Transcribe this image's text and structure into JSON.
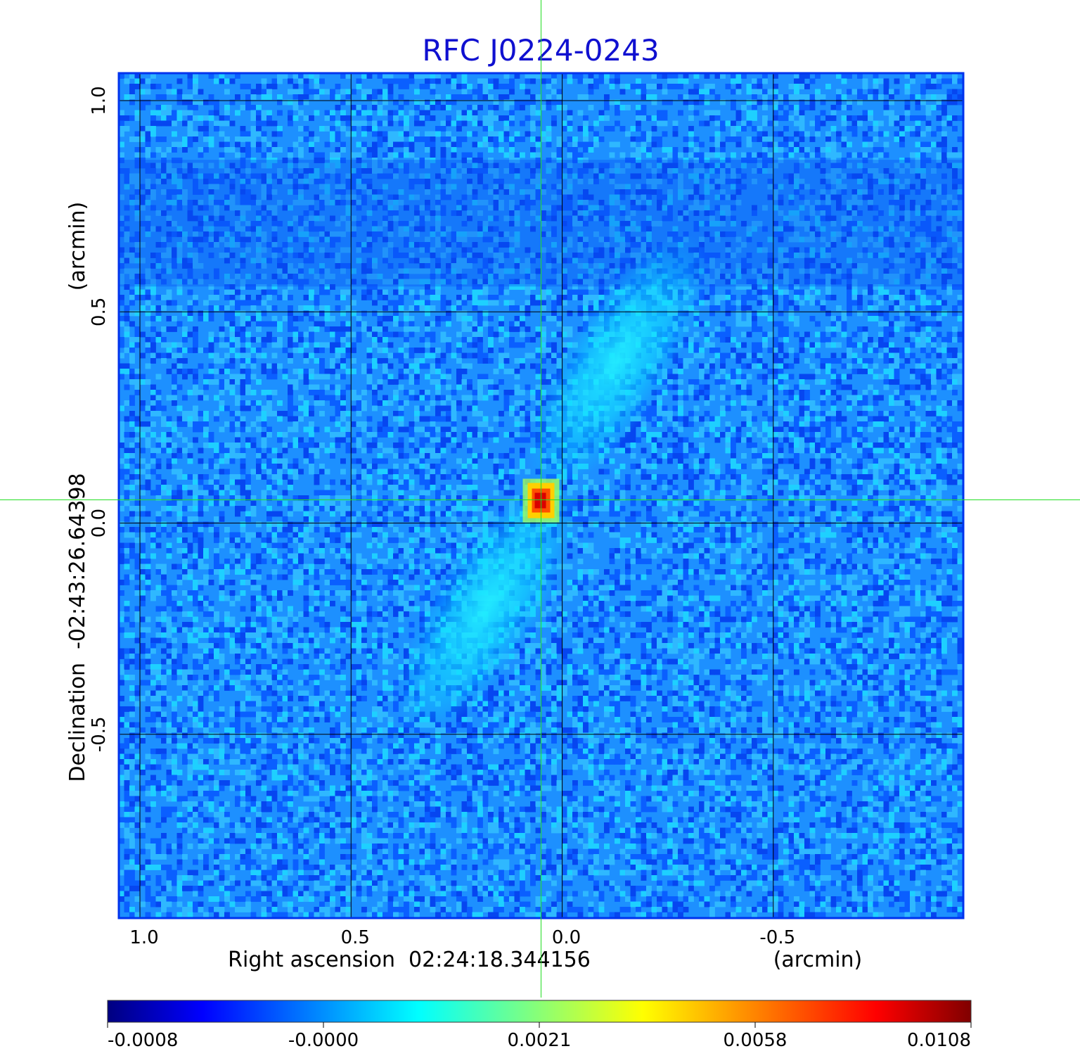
{
  "chart_data": {
    "type": "heatmap",
    "title": "RFC J0224-0243",
    "xlabel": "Right ascension  02:24:18.344156",
    "xunit": "(arcmin)",
    "ylabel": "Declination  -02:43:26.64398",
    "yunit": "(arcmin)",
    "x_ticks": [
      {
        "value": 1.0,
        "label": "1.0"
      },
      {
        "value": 0.5,
        "label": "0.5"
      },
      {
        "value": 0.0,
        "label": "0.0"
      },
      {
        "value": -0.5,
        "label": "-0.5"
      }
    ],
    "y_ticks": [
      {
        "value": 1.0,
        "label": "1.0"
      },
      {
        "value": 0.5,
        "label": "0.5"
      },
      {
        "value": 0.0,
        "label": "0.0"
      },
      {
        "value": -0.5,
        "label": "-0.5"
      }
    ],
    "xlim": [
      1.05,
      -0.95
    ],
    "ylim": [
      -0.935,
      1.065
    ],
    "grid": true,
    "crosshair": {
      "x": 0.05,
      "y": 0.055
    },
    "colormap": "jet",
    "colorbar": {
      "ticks": [
        "-0.0008",
        "-0.0000",
        "0.0021",
        "0.0058",
        "0.0108"
      ],
      "colors": [
        "#000080",
        "#0000ff",
        "#00ffff",
        "#ffff00",
        "#ff0000",
        "#800000"
      ]
    },
    "features": [
      {
        "kind": "core",
        "x": 0.05,
        "y": 0.055,
        "peak": 0.0108
      },
      {
        "kind": "lobe",
        "x": -0.13,
        "y": 0.38,
        "level": 0.0016
      },
      {
        "kind": "lobe",
        "x": 0.18,
        "y": -0.2,
        "level": 0.0016
      }
    ],
    "colors": {
      "title": "#1010d0",
      "frame": "#0033ee",
      "grid": "#000000",
      "crosshair": "#22dd22"
    }
  }
}
